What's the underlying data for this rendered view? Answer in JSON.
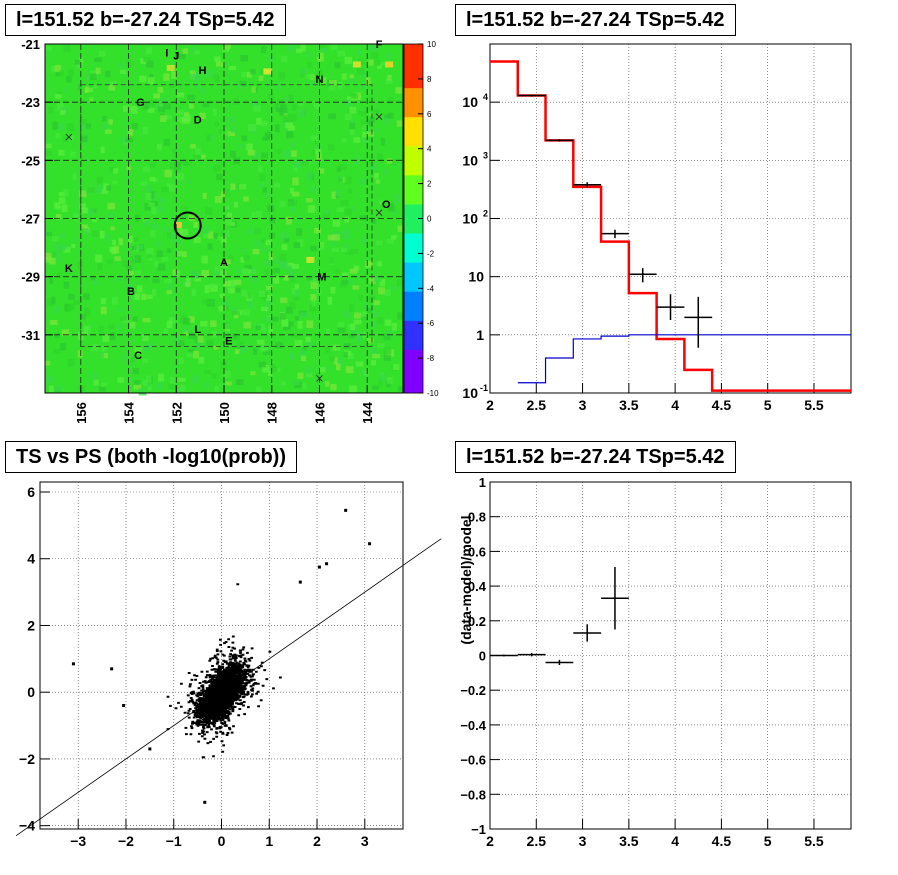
{
  "panels": {
    "top_left": {
      "title": "l=151.52 b=-27.24 TSp=5.42"
    },
    "top_right": {
      "title": "l=151.52 b=-27.24 TSp=5.42"
    },
    "bottom_left": {
      "title": "TS vs PS (both -log10(prob))"
    },
    "bottom_right": {
      "title": "l=151.52 b=-27.24 TSp=5.42"
    }
  },
  "colors": {
    "map_bg": "#33e02a",
    "model_red": "#ff0000",
    "model_blue": "#0000cc",
    "data": "#000000"
  },
  "chart_data": [
    {
      "type": "heatmap",
      "title": "l=151.52 b=-27.24 TSp=5.42",
      "xticks": [
        "156",
        "154",
        "152",
        "150",
        "148",
        "146",
        "144"
      ],
      "yticks": [
        "-21",
        "-23",
        "-25",
        "-27",
        "-29",
        "-31"
      ],
      "xlim": [
        157.5,
        142.5
      ],
      "ylim": [
        -33,
        -21
      ],
      "colorbar_ticks": [
        "10",
        "8",
        "6",
        "4",
        "2",
        "0",
        "-2",
        "-4",
        "-6",
        "-8",
        "-10"
      ],
      "colorbar_range": [
        -10,
        10
      ],
      "source_circle": {
        "l": 151.52,
        "b": -27.24
      },
      "source_labels": [
        {
          "label": "I",
          "l": 152.4,
          "b": -21.3
        },
        {
          "label": "J",
          "l": 152.0,
          "b": -21.4
        },
        {
          "label": "F",
          "l": 143.5,
          "b": -21.0
        },
        {
          "label": "H",
          "l": 150.9,
          "b": -21.9
        },
        {
          "label": "N",
          "l": 146.0,
          "b": -22.2
        },
        {
          "label": "G",
          "l": 153.5,
          "b": -23.0
        },
        {
          "label": "D",
          "l": 151.1,
          "b": -23.6
        },
        {
          "label": "O",
          "l": 143.2,
          "b": -26.5
        },
        {
          "label": "A",
          "l": 150.0,
          "b": -28.5
        },
        {
          "label": "K",
          "l": 156.5,
          "b": -28.7
        },
        {
          "label": "M",
          "l": 145.9,
          "b": -29.0
        },
        {
          "label": "B",
          "l": 153.9,
          "b": -29.5
        },
        {
          "label": "L",
          "l": 151.1,
          "b": -30.8
        },
        {
          "label": "E",
          "l": 149.8,
          "b": -31.2
        },
        {
          "label": "C",
          "l": 153.6,
          "b": -31.7
        }
      ]
    },
    {
      "type": "line",
      "title": "l=151.52 b=-27.24 TSp=5.42",
      "xlim": [
        2,
        5.9
      ],
      "ylim": [
        0.1,
        100000
      ],
      "log_y": true,
      "grid": true,
      "xticks": [
        "2",
        "2.5",
        "3",
        "3.5",
        "4",
        "4.5",
        "5",
        "5.5"
      ],
      "yticks": [
        "10^-1",
        "1",
        "10",
        "10^2",
        "10^3",
        "10^4"
      ],
      "series": [
        {
          "type": "step",
          "color": "#ff0000",
          "edges": [
            2.0,
            2.3,
            2.6,
            2.9,
            3.2,
            3.5,
            3.8,
            4.1,
            4.4,
            5.9
          ],
          "values": [
            50000,
            13000,
            2200,
            350,
            40,
            5.2,
            0.85,
            0.25,
            0.11
          ]
        },
        {
          "type": "step",
          "color": "#0000cc",
          "edges": [
            2.3,
            2.6,
            2.9,
            3.2,
            3.5,
            5.9
          ],
          "values": [
            0.15,
            0.4,
            0.85,
            0.95,
            1.0
          ]
        },
        {
          "type": "errorbar",
          "color": "#000000",
          "x": [
            2.45,
            2.75,
            3.05,
            3.35,
            3.65,
            3.95,
            4.25
          ],
          "y": [
            13000,
            2200,
            380,
            55,
            11,
            3,
            2
          ],
          "xerr": 0.15,
          "ylow": [
            12500,
            2100,
            340,
            46,
            8,
            1.8,
            0.6
          ],
          "yhigh": [
            13500,
            2300,
            420,
            64,
            14,
            5,
            4.5
          ]
        }
      ]
    },
    {
      "type": "scatter",
      "title": "TS vs PS (both -log10(prob))",
      "xlim": [
        -3.8,
        3.8
      ],
      "ylim": [
        -4.1,
        6.3
      ],
      "grid": true,
      "xticks": [
        "-3",
        "-2",
        "-1",
        "0",
        "1",
        "2",
        "3"
      ],
      "yticks": [
        "-4",
        "-2",
        "0",
        "2",
        "4",
        "6"
      ],
      "fit_line": {
        "slope": 1,
        "intercept": 0
      },
      "outliers": [
        [
          2.6,
          5.45
        ],
        [
          3.1,
          4.45
        ],
        [
          2.2,
          3.85
        ],
        [
          2.05,
          3.75
        ],
        [
          1.65,
          3.3
        ],
        [
          -3.1,
          0.85
        ],
        [
          -2.3,
          0.7
        ],
        [
          -2.05,
          -0.4
        ],
        [
          -1.5,
          -1.7
        ],
        [
          -0.35,
          -3.3
        ]
      ]
    },
    {
      "type": "scatter",
      "title": "l=151.52 b=-27.24 TSp=5.42",
      "ylabel": "(data-model)/model",
      "xlim": [
        2,
        5.9
      ],
      "ylim": [
        -1,
        1
      ],
      "grid": true,
      "xticks": [
        "2",
        "2.5",
        "3",
        "3.5",
        "4",
        "4.5",
        "5",
        "5.5"
      ],
      "yticks": [
        "1",
        "0.8",
        "0.6",
        "0.4",
        "0.2",
        "0",
        "-0.2",
        "-0.4",
        "-0.6",
        "-0.8",
        "-1"
      ],
      "x": [
        2.15,
        2.45,
        2.75,
        3.05,
        3.35
      ],
      "y": [
        0.0,
        0.005,
        -0.04,
        0.13,
        0.33
      ],
      "xerr": 0.15,
      "yerr": [
        0.005,
        0.01,
        0.015,
        0.05,
        0.18
      ]
    }
  ]
}
